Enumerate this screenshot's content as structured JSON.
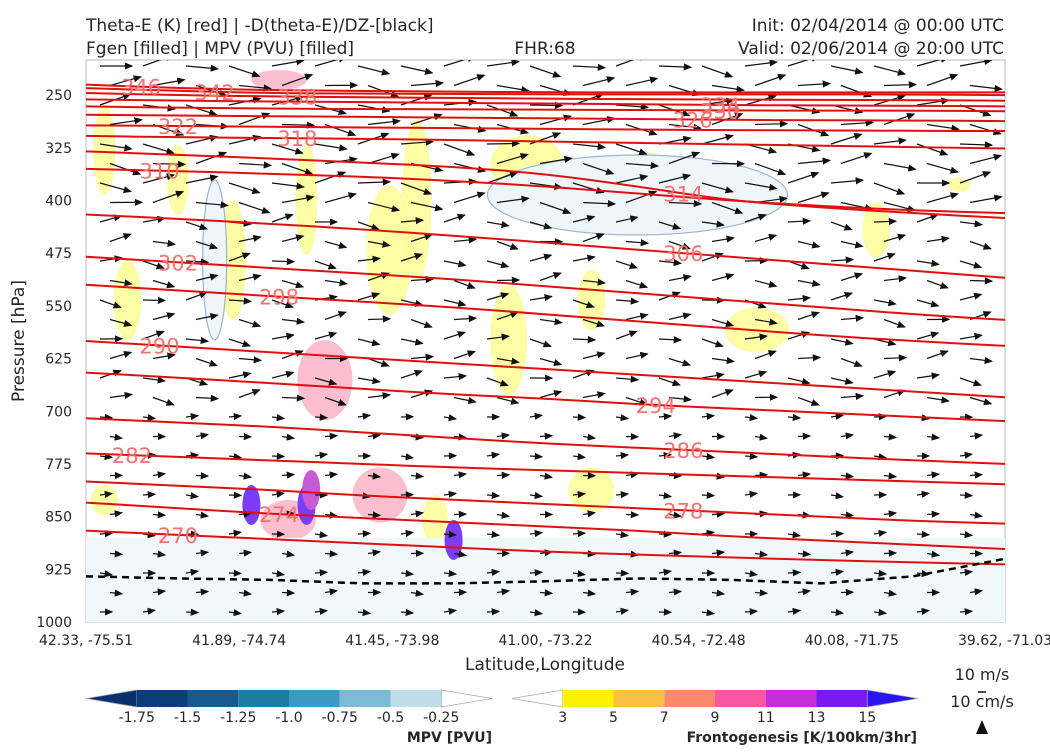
{
  "header": {
    "title_left_1": "Theta-E (K) [red] | -D(theta-E)/DZ-[black]",
    "title_left_2": "Fgen [filled] | MPV (PVU) [filled]",
    "title_center": "FHR:68",
    "title_right_1": "Init: 02/04/2014 @ 00:00 UTC",
    "title_right_2": "Valid: 02/06/2014 @ 20:00 UTC"
  },
  "chart_data": {
    "type": "cross-section",
    "xlabel": "Latitude,Longitude",
    "ylabel": "Pressure [hPa]",
    "ylim": [
      1000,
      200
    ],
    "y_ticks": [
      250,
      325,
      400,
      475,
      550,
      625,
      700,
      775,
      850,
      925,
      1000
    ],
    "x_ticks": [
      "42.33, -75.51",
      "41.89, -74.74",
      "41.45, -73.98",
      "41.00, -73.22",
      "40.54, -72.48",
      "40.08, -71.75",
      "39.62, -71.03"
    ],
    "theta_e_contours": [
      {
        "value": "346",
        "label_x": 0.06,
        "y": [
          235,
          240,
          243,
          244,
          245,
          246,
          246,
          246,
          246,
          246,
          246
        ]
      },
      {
        "value": "342",
        "label_x": 0.14,
        "y": [
          240,
          244,
          247,
          248,
          248,
          249,
          249,
          249,
          249,
          249,
          250
        ]
      },
      {
        "value": "338",
        "label_x": 0.23,
        "y": [
          247,
          250,
          252,
          253,
          254,
          255,
          256,
          256,
          257,
          257,
          258
        ]
      },
      {
        "value": "334",
        "label_x": 0.69,
        "y": [
          256,
          258,
          259,
          260,
          261,
          262,
          263,
          264,
          265,
          265,
          266
        ]
      },
      {
        "value": "330",
        "label_x": 0.69,
        "y": [
          266,
          268,
          269,
          270,
          270,
          271,
          271,
          272,
          272,
          272,
          273
        ]
      },
      {
        "value": "326",
        "label_x": 0.66,
        "y": [
          278,
          279,
          280,
          281,
          282,
          283,
          284,
          285,
          286,
          286,
          287
        ]
      },
      {
        "value": "322",
        "label_x": 0.1,
        "y": [
          293,
          294,
          295,
          296,
          297,
          298,
          299,
          300,
          300,
          301,
          301
        ]
      },
      {
        "value": "318",
        "label_x": 0.23,
        "y": [
          308,
          310,
          311,
          312,
          314,
          316,
          318,
          320,
          322,
          324,
          326
        ]
      },
      {
        "value": "310",
        "label_x": 0.08,
        "y": [
          355,
          358,
          362,
          366,
          372,
          380,
          390,
          400,
          408,
          414,
          418
        ]
      },
      {
        "value": "314",
        "label_x": 0.65,
        "y": [
          330,
          335,
          340,
          346,
          352,
          362,
          380,
          400,
          410,
          418,
          425
        ]
      },
      {
        "value": "306",
        "label_x": 0.65,
        "y": [
          420,
          426,
          433,
          441,
          450,
          460,
          470,
          480,
          490,
          500,
          510
        ]
      },
      {
        "value": "302",
        "label_x": 0.1,
        "y": [
          480,
          488,
          496,
          504,
          512,
          522,
          532,
          542,
          552,
          562,
          570
        ]
      },
      {
        "value": "298",
        "label_x": 0.21,
        "y": [
          520,
          528,
          536,
          544,
          552,
          562,
          572,
          582,
          592,
          600,
          607
        ]
      },
      {
        "value": "290",
        "label_x": 0.08,
        "y": [
          600,
          608,
          616,
          624,
          632,
          640,
          648,
          656,
          664,
          672,
          680
        ]
      },
      {
        "value": "294",
        "label_x": 0.62,
        "y": [
          645,
          652,
          660,
          668,
          676,
          682,
          690,
          696,
          702,
          708,
          714
        ]
      },
      {
        "value": "286",
        "label_x": 0.65,
        "y": [
          710,
          716,
          722,
          730,
          738,
          746,
          752,
          758,
          764,
          770,
          775
        ]
      },
      {
        "value": "282",
        "label_x": 0.05,
        "y": [
          760,
          765,
          770,
          775,
          780,
          784,
          788,
          792,
          796,
          800,
          804
        ]
      },
      {
        "value": "278",
        "label_x": 0.65,
        "y": [
          800,
          806,
          812,
          820,
          826,
          832,
          838,
          844,
          850,
          856,
          860
        ]
      },
      {
        "value": "274",
        "label_x": 0.21,
        "y": [
          830,
          838,
          846,
          852,
          858,
          864,
          870,
          878,
          884,
          890,
          896
        ]
      },
      {
        "value": "270",
        "label_x": 0.1,
        "y": [
          870,
          876,
          882,
          888,
          894,
          900,
          904,
          908,
          912,
          915,
          918
        ]
      }
    ],
    "boundary_layer_line": {
      "y": [
        935,
        938,
        940,
        945,
        945,
        942,
        938,
        940,
        945,
        935,
        910
      ]
    },
    "mpv_colorbar": {
      "title": "MPV [PVU]",
      "ticks": [
        "-1.75",
        "-1.5",
        "-1.25",
        "-1.0",
        "-0.75",
        "-0.5",
        "-0.25"
      ],
      "colors": [
        "#08306b",
        "#0a3d7a",
        "#165a8f",
        "#1f7ba8",
        "#3b9bc4",
        "#7bbbd6",
        "#bedfea",
        "#ffffff"
      ]
    },
    "fgen_colorbar": {
      "title": "Frontogenesis [K/100km/3hr]",
      "ticks": [
        "3",
        "5",
        "7",
        "9",
        "11",
        "13",
        "15"
      ],
      "colors": [
        "#ffffff",
        "#fff200",
        "#fbbf44",
        "#f98b6b",
        "#f9579f",
        "#c22fd6",
        "#7a19f0",
        "#2a14f5"
      ]
    },
    "wind_reference": {
      "label_1": "10 m/s",
      "label_2": "10 cm/s"
    }
  }
}
